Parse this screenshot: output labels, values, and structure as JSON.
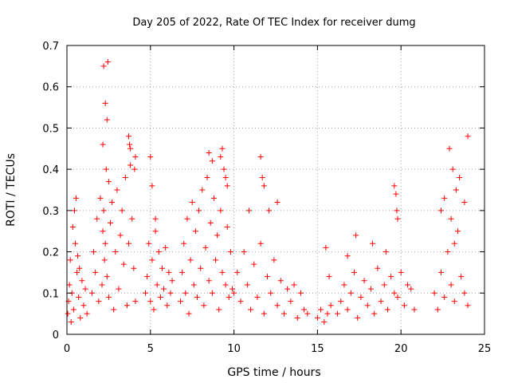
{
  "chart_data": {
    "type": "scatter",
    "title": "Day 205 of 2022, Rate Of TEC Index for receiver dumg",
    "xlabel": "GPS time / hours",
    "ylabel": "ROTI / TECUs",
    "xlim": [
      0,
      25
    ],
    "ylim": [
      0,
      0.7
    ],
    "xticks": [
      "0",
      "5",
      "10",
      "15",
      "20",
      "25"
    ],
    "yticks": [
      "0",
      "0.1",
      "0.2",
      "0.3",
      "0.4",
      "0.5",
      "0.6",
      "0.7"
    ],
    "grid": true,
    "marker": "+",
    "color": "#ff0000",
    "series": [
      {
        "x": [
          0.05,
          0.1,
          0.15,
          0.2,
          0.3,
          0.4,
          0.5,
          0.6,
          0.7,
          0.8,
          0.9,
          1.0,
          1.1,
          1.2,
          0.35,
          0.45,
          0.55,
          0.65,
          0.25,
          0.75,
          1.5,
          1.6,
          1.7,
          1.8,
          1.9,
          2.0,
          2.1,
          2.15,
          2.2,
          2.25,
          2.3,
          2.35,
          2.4,
          2.5,
          2.6,
          2.7,
          2.8,
          2.9,
          3.0,
          3.1,
          3.2,
          3.3,
          3.4,
          3.5,
          3.6,
          3.7,
          3.8,
          3.9,
          4.0,
          4.1,
          2.15,
          2.2,
          2.3,
          2.4,
          2.45,
          2.5,
          3.7,
          3.75,
          3.8,
          4.05,
          4.1,
          4.7,
          4.8,
          4.9,
          5.0,
          5.1,
          5.2,
          5.3,
          5.4,
          5.5,
          5.6,
          5.7,
          5.8,
          5.9,
          6.0,
          6.1,
          6.2,
          6.3,
          5.0,
          5.1,
          5.3,
          6.8,
          6.9,
          7.0,
          7.1,
          7.2,
          7.3,
          7.4,
          7.5,
          7.6,
          7.7,
          7.8,
          7.9,
          8.0,
          8.1,
          8.2,
          8.3,
          8.4,
          8.5,
          8.6,
          8.7,
          8.8,
          8.9,
          9.0,
          9.1,
          9.2,
          9.3,
          9.4,
          9.5,
          9.6,
          9.7,
          9.8,
          9.9,
          8.5,
          8.7,
          9.2,
          9.3,
          9.5,
          9.6,
          10.0,
          10.2,
          10.4,
          10.6,
          10.8,
          11.0,
          11.2,
          11.4,
          11.6,
          11.8,
          12.0,
          12.2,
          12.4,
          12.6,
          12.8,
          13.0,
          13.2,
          13.4,
          13.6,
          13.8,
          14.0,
          14.2,
          14.4,
          11.6,
          11.7,
          11.8,
          12.1,
          12.6,
          10.9,
          15.0,
          15.2,
          15.4,
          15.6,
          15.8,
          15.5,
          15.7,
          16.2,
          16.4,
          16.6,
          16.8,
          17.0,
          17.2,
          17.4,
          17.6,
          17.8,
          18.0,
          18.2,
          18.4,
          18.6,
          18.8,
          19.0,
          19.2,
          19.4,
          19.6,
          19.8,
          20.0,
          20.2,
          20.4,
          20.6,
          20.8,
          16.8,
          17.3,
          18.3,
          19.1,
          19.6,
          19.7,
          19.75,
          19.8,
          22.0,
          22.2,
          22.4,
          22.6,
          22.8,
          23.0,
          23.2,
          23.4,
          23.6,
          23.8,
          24.0,
          22.4,
          22.6,
          22.9,
          23.1,
          23.3,
          23.5,
          23.8,
          24.0,
          23.0,
          23.2
        ],
        "y": [
          0.05,
          0.08,
          0.12,
          0.18,
          0.1,
          0.06,
          0.22,
          0.15,
          0.09,
          0.04,
          0.13,
          0.07,
          0.11,
          0.05,
          0.26,
          0.3,
          0.33,
          0.19,
          0.03,
          0.16,
          0.1,
          0.2,
          0.15,
          0.28,
          0.08,
          0.33,
          0.12,
          0.25,
          0.3,
          0.18,
          0.22,
          0.4,
          0.14,
          0.09,
          0.27,
          0.32,
          0.06,
          0.2,
          0.35,
          0.11,
          0.24,
          0.3,
          0.17,
          0.38,
          0.07,
          0.22,
          0.45,
          0.28,
          0.16,
          0.08,
          0.46,
          0.65,
          0.56,
          0.52,
          0.66,
          0.37,
          0.48,
          0.46,
          0.41,
          0.4,
          0.43,
          0.1,
          0.14,
          0.22,
          0.08,
          0.18,
          0.06,
          0.25,
          0.12,
          0.2,
          0.09,
          0.16,
          0.11,
          0.21,
          0.07,
          0.15,
          0.1,
          0.13,
          0.43,
          0.36,
          0.28,
          0.08,
          0.15,
          0.22,
          0.1,
          0.28,
          0.05,
          0.18,
          0.32,
          0.12,
          0.25,
          0.09,
          0.3,
          0.16,
          0.35,
          0.07,
          0.21,
          0.38,
          0.13,
          0.27,
          0.1,
          0.33,
          0.18,
          0.24,
          0.06,
          0.3,
          0.15,
          0.4,
          0.12,
          0.26,
          0.09,
          0.2,
          0.11,
          0.44,
          0.42,
          0.43,
          0.45,
          0.38,
          0.36,
          0.1,
          0.15,
          0.08,
          0.2,
          0.12,
          0.06,
          0.17,
          0.09,
          0.22,
          0.05,
          0.14,
          0.1,
          0.18,
          0.07,
          0.13,
          0.05,
          0.11,
          0.08,
          0.12,
          0.04,
          0.1,
          0.06,
          0.05,
          0.43,
          0.38,
          0.36,
          0.3,
          0.32,
          0.3,
          0.04,
          0.06,
          0.03,
          0.05,
          0.07,
          0.21,
          0.14,
          0.05,
          0.08,
          0.12,
          0.06,
          0.1,
          0.15,
          0.04,
          0.09,
          0.13,
          0.07,
          0.11,
          0.05,
          0.16,
          0.08,
          0.12,
          0.06,
          0.14,
          0.1,
          0.09,
          0.15,
          0.07,
          0.12,
          0.11,
          0.06,
          0.19,
          0.24,
          0.22,
          0.2,
          0.36,
          0.34,
          0.3,
          0.28,
          0.1,
          0.06,
          0.15,
          0.09,
          0.2,
          0.12,
          0.08,
          0.25,
          0.14,
          0.1,
          0.07,
          0.3,
          0.33,
          0.45,
          0.4,
          0.35,
          0.38,
          0.32,
          0.48,
          0.28,
          0.22
        ]
      }
    ]
  }
}
